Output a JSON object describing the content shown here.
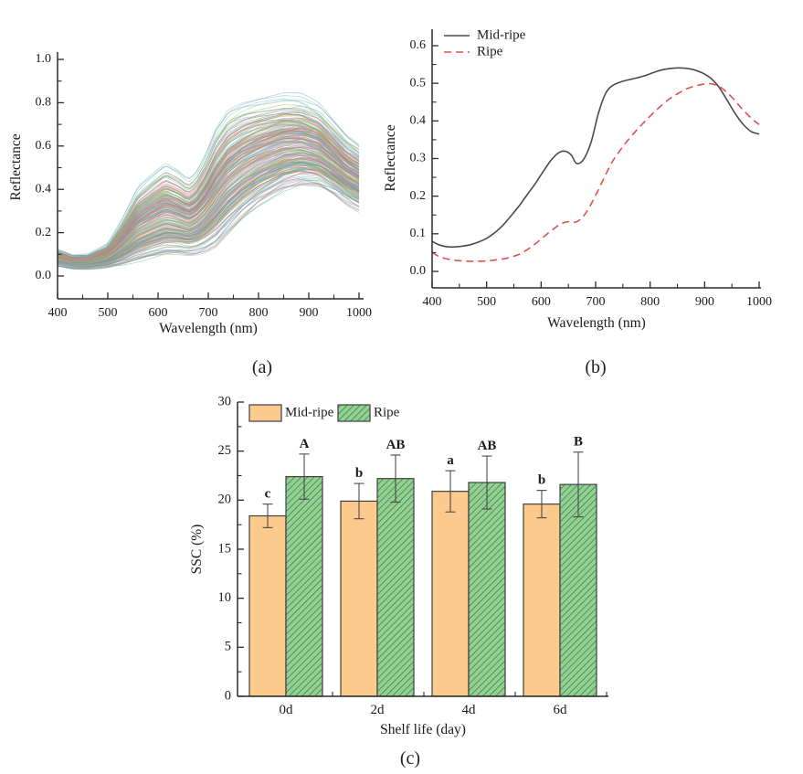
{
  "figure": {
    "panel_a_label": "(a)",
    "panel_b_label": "(b)",
    "panel_c_label": "(c)"
  },
  "chart_data": [
    {
      "id": "a",
      "type": "line",
      "description": "Raw reflectance spectra of all samples (dense multi-curve band)",
      "xlabel": "Wavelength (nm)",
      "ylabel": "Reflectance",
      "xlim": [
        400,
        1000
      ],
      "ylim": [
        0.0,
        1.0
      ],
      "xticks": [
        400,
        500,
        600,
        700,
        800,
        900,
        1000
      ],
      "yticks": [
        0.0,
        0.2,
        0.4,
        0.6,
        0.8,
        1.0
      ],
      "x_minor_step": 50,
      "y_minor_step": 0.1,
      "grid": false,
      "n_curves": 230,
      "curve_opacity": 0.45,
      "envelope_x": [
        400,
        430,
        460,
        500,
        530,
        560,
        590,
        615,
        640,
        660,
        675,
        695,
        715,
        740,
        770,
        800,
        850,
        885,
        920,
        950,
        975,
        1000
      ],
      "envelope_lower": [
        0.05,
        0.038,
        0.036,
        0.042,
        0.052,
        0.068,
        0.085,
        0.098,
        0.1,
        0.097,
        0.1,
        0.115,
        0.14,
        0.2,
        0.27,
        0.33,
        0.4,
        0.425,
        0.42,
        0.385,
        0.345,
        0.315
      ],
      "envelope_upper": [
        0.12,
        0.095,
        0.1,
        0.15,
        0.27,
        0.41,
        0.47,
        0.515,
        0.48,
        0.44,
        0.47,
        0.56,
        0.68,
        0.77,
        0.805,
        0.82,
        0.835,
        0.825,
        0.78,
        0.7,
        0.635,
        0.595
      ],
      "palette": [
        "#6b8fc9",
        "#c96a6a",
        "#76b376",
        "#a98bc9",
        "#c9a84f",
        "#5fb3ba",
        "#d19055",
        "#93a055",
        "#c27ba8",
        "#8585c2",
        "#55a392",
        "#c9a0a0",
        "#88b8d8",
        "#a8c878",
        "#b8b855",
        "#7f8fa0",
        "#d08080",
        "#70a8a0"
      ]
    },
    {
      "id": "b",
      "type": "line",
      "description": "Mean reflectance spectra of mid-ripe and ripe fruit",
      "xlabel": "Wavelength (nm)",
      "ylabel": "Reflectance",
      "xlim": [
        400,
        1000
      ],
      "ylim": [
        0.0,
        0.6
      ],
      "xticks": [
        400,
        500,
        600,
        700,
        800,
        900,
        1000
      ],
      "yticks": [
        0.0,
        0.1,
        0.2,
        0.3,
        0.4,
        0.5,
        0.6
      ],
      "x_minor_step": 50,
      "y_minor_step": 0.05,
      "grid": false,
      "legend_position": "top-left",
      "series": [
        {
          "name": "Mid-ripe",
          "color": "#4a4a4a",
          "style": "solid",
          "x": [
            400,
            412,
            425,
            440,
            455,
            470,
            485,
            500,
            515,
            530,
            545,
            560,
            575,
            590,
            605,
            618,
            630,
            642,
            655,
            665,
            678,
            692,
            705,
            718,
            730,
            745,
            760,
            775,
            790,
            805,
            820,
            835,
            850,
            865,
            880,
            895,
            910,
            925,
            940,
            955,
            970,
            985,
            1000
          ],
          "y": [
            0.08,
            0.071,
            0.066,
            0.065,
            0.067,
            0.071,
            0.078,
            0.088,
            0.103,
            0.123,
            0.148,
            0.175,
            0.205,
            0.235,
            0.268,
            0.295,
            0.313,
            0.32,
            0.31,
            0.287,
            0.298,
            0.345,
            0.42,
            0.472,
            0.493,
            0.503,
            0.509,
            0.514,
            0.52,
            0.528,
            0.535,
            0.539,
            0.541,
            0.54,
            0.536,
            0.528,
            0.515,
            0.492,
            0.458,
            0.422,
            0.392,
            0.372,
            0.365
          ]
        },
        {
          "name": "Ripe",
          "color": "#e2514e",
          "style": "dashed",
          "x": [
            400,
            412,
            425,
            440,
            455,
            470,
            485,
            500,
            515,
            530,
            545,
            560,
            575,
            590,
            605,
            620,
            635,
            648,
            660,
            672,
            685,
            700,
            715,
            730,
            745,
            760,
            775,
            790,
            805,
            820,
            835,
            850,
            865,
            880,
            895,
            910,
            925,
            940,
            955,
            970,
            985,
            1000
          ],
          "y": [
            0.05,
            0.04,
            0.034,
            0.03,
            0.028,
            0.027,
            0.027,
            0.028,
            0.03,
            0.033,
            0.038,
            0.046,
            0.058,
            0.074,
            0.092,
            0.11,
            0.125,
            0.132,
            0.13,
            0.138,
            0.162,
            0.202,
            0.247,
            0.29,
            0.322,
            0.35,
            0.375,
            0.398,
            0.42,
            0.44,
            0.458,
            0.472,
            0.484,
            0.492,
            0.497,
            0.499,
            0.493,
            0.477,
            0.455,
            0.43,
            0.408,
            0.39
          ]
        }
      ]
    },
    {
      "id": "c",
      "type": "bar",
      "description": "SSC of mid-ripe and ripe fruit during shelf life, with SD error bars and significance letters",
      "xlabel": "Shelf life (day)",
      "ylabel": "SSC (%)",
      "ylim": [
        0,
        30
      ],
      "yticks": [
        0,
        5,
        10,
        15,
        20,
        25,
        30
      ],
      "y_minor_step": 2.5,
      "categories": [
        "0d",
        "2d",
        "4d",
        "6d"
      ],
      "legend_position": "top-left",
      "series": [
        {
          "name": "Mid-ripe",
          "fill": "#fbca8c",
          "edge": "#3f3f3f",
          "hatch": false,
          "values": [
            18.4,
            19.9,
            20.9,
            19.6
          ],
          "errors": [
            1.2,
            1.8,
            2.1,
            1.4
          ],
          "letters": [
            "c",
            "b",
            "a",
            "b"
          ]
        },
        {
          "name": "Ripe",
          "fill": "#93d093",
          "edge": "#3f3f3f",
          "hatch": true,
          "hatch_color": "#2c6e34",
          "values": [
            22.4,
            22.2,
            21.8,
            21.6
          ],
          "errors": [
            2.3,
            2.4,
            2.7,
            3.3
          ],
          "letters": [
            "A",
            "AB",
            "AB",
            "B"
          ]
        }
      ],
      "error_bar_color": "#4a4a4a"
    }
  ]
}
